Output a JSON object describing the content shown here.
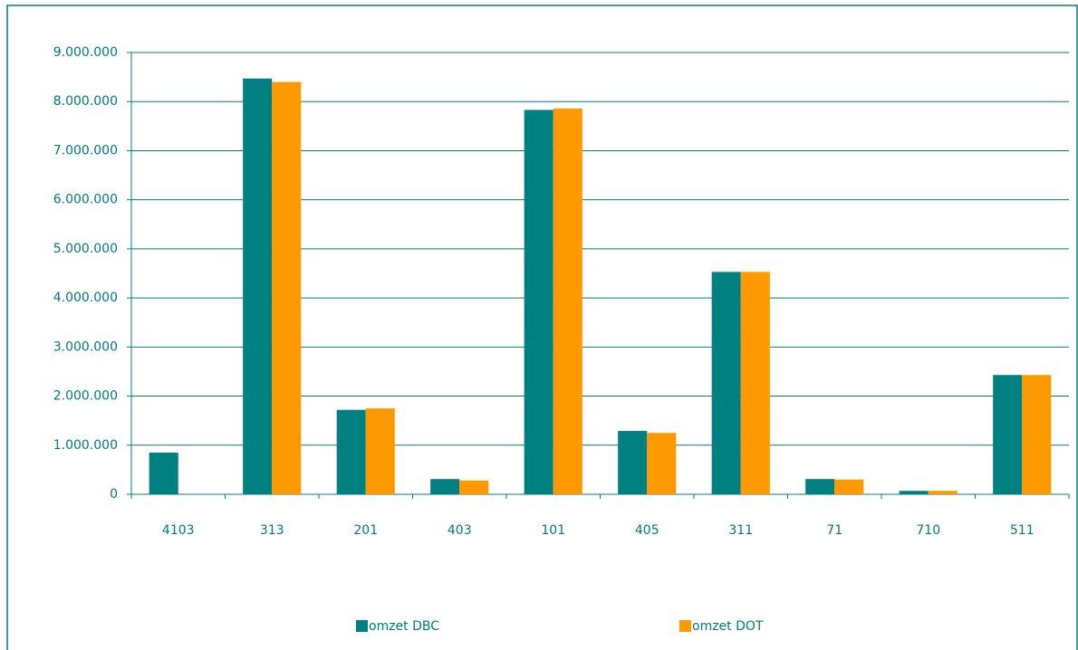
{
  "chart_data": {
    "type": "bar",
    "categories": [
      "4103",
      "313",
      "201",
      "403",
      "101",
      "405",
      "311",
      "71",
      "710",
      "511"
    ],
    "series": [
      {
        "name": "omzet DBC",
        "color": "#008080",
        "values": [
          850000,
          8470000,
          1720000,
          310000,
          7830000,
          1290000,
          4530000,
          310000,
          70000,
          2430000
        ]
      },
      {
        "name": "omzet DOT",
        "color": "#ff9900",
        "values": [
          null,
          8400000,
          1750000,
          280000,
          7860000,
          1250000,
          4530000,
          300000,
          70000,
          2430000
        ]
      }
    ],
    "ylim": [
      0,
      9000000
    ],
    "yticks": [
      0,
      {
        "value": 1000000,
        "label": "1.000.000"
      },
      {
        "value": 2000000,
        "label": "2.000.000"
      },
      {
        "value": 3000000,
        "label": "3.000.000"
      },
      {
        "value": 4000000,
        "label": "4.000.000"
      },
      {
        "value": 5000000,
        "label": "5.000.000"
      },
      {
        "value": 6000000,
        "label": "6.000.000"
      },
      {
        "value": 7000000,
        "label": "7.000.000"
      },
      {
        "value": 8000000,
        "label": "8.000.000"
      },
      {
        "value": 9000000,
        "label": "9.000.000"
      }
    ],
    "grid": true,
    "legend": "bottom"
  }
}
